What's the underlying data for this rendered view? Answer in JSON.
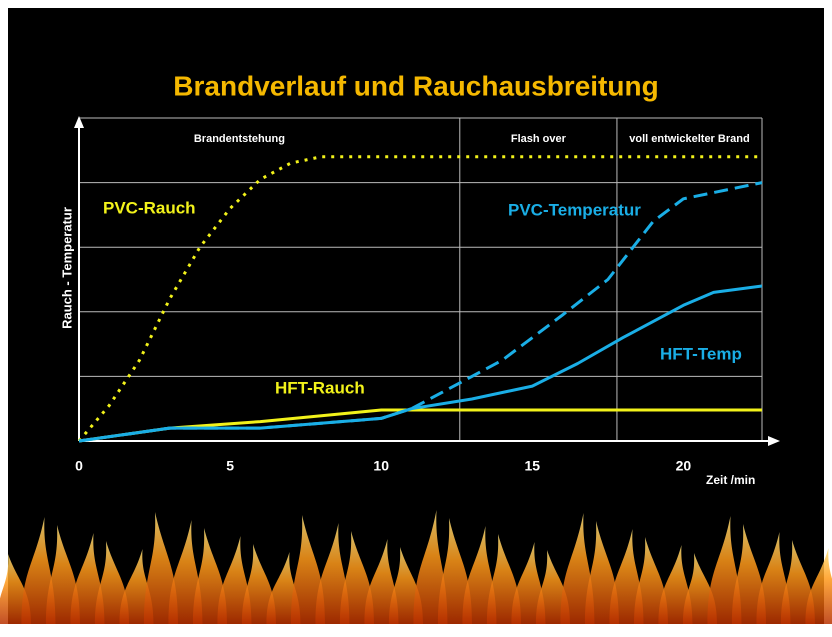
{
  "chart_data": {
    "type": "line",
    "title": "Brandverlauf und Rauchausbreitung",
    "x_label": "Zeit /min",
    "y_label": "Rauch - Temperatur",
    "xlim": [
      0,
      22.6
    ],
    "xticks": [
      0,
      5,
      10,
      15,
      20
    ],
    "ylim": [
      0,
      5
    ],
    "yticks": [
      1,
      2,
      3,
      4,
      5
    ],
    "grid": true,
    "phases": [
      {
        "label": "Brandentstehung",
        "start": 0,
        "end": 12.6
      },
      {
        "label": "Flash over",
        "start": 12.6,
        "end": 17.8
      },
      {
        "label": "voll entwickelter Brand",
        "start": 17.8,
        "end": 22.6
      }
    ],
    "series": [
      {
        "name": "PVC-Rauch",
        "color": "#f2f21a",
        "style": "dotted",
        "x": [
          0,
          1,
          2,
          3,
          4,
          5,
          6,
          7,
          8,
          10,
          15,
          22.6
        ],
        "values": [
          0,
          0.55,
          1.25,
          2.2,
          3.0,
          3.6,
          4.05,
          4.3,
          4.4,
          4.4,
          4.4,
          4.4
        ]
      },
      {
        "name": "HFT-Rauch",
        "color": "#f2f21a",
        "style": "solid",
        "x": [
          0,
          3,
          6,
          10,
          11,
          15,
          22.6
        ],
        "values": [
          0,
          0.2,
          0.3,
          0.48,
          0.48,
          0.48,
          0.48
        ]
      },
      {
        "name": "PVC-Temperatur",
        "color": "#1aaee6",
        "style": "dashed",
        "x": [
          0,
          3,
          6,
          10,
          11,
          12,
          14,
          16,
          17.5,
          19,
          20,
          22.6
        ],
        "values": [
          0,
          0.2,
          0.2,
          0.35,
          0.5,
          0.75,
          1.25,
          1.95,
          2.5,
          3.4,
          3.75,
          4.0
        ]
      },
      {
        "name": "HFT-Temp",
        "color": "#1aaee6",
        "style": "solid",
        "x": [
          0,
          3,
          6,
          10,
          11,
          13,
          15,
          16.5,
          18,
          20,
          21,
          22.6
        ],
        "values": [
          0,
          0.2,
          0.2,
          0.35,
          0.5,
          0.65,
          0.85,
          1.2,
          1.6,
          2.1,
          2.3,
          2.4
        ]
      }
    ]
  }
}
